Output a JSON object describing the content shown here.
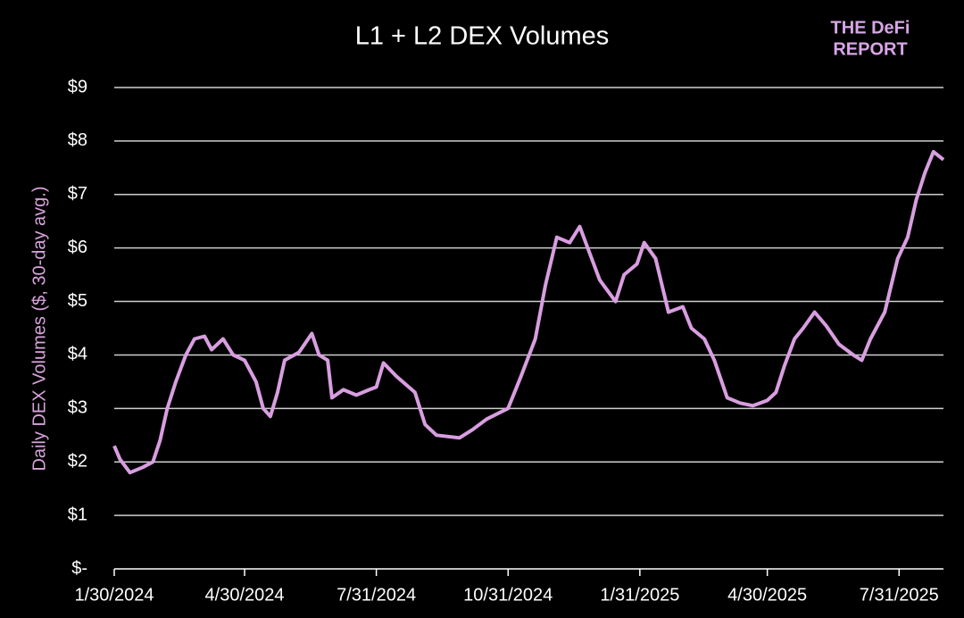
{
  "chart_data": {
    "type": "line",
    "title": "L1 + L2 DEX Volumes",
    "brand": [
      "THE DeFi",
      "REPORT"
    ],
    "y_label": "Daily DEX Volumes ($, 30-day avg.)",
    "x": [
      "1/30/2024",
      "2/3/2024",
      "2/10/2024",
      "2/19/2024",
      "2/26/2024",
      "3/2/2024",
      "3/7/2024",
      "3/13/2024",
      "3/20/2024",
      "3/26/2024",
      "4/2/2024",
      "4/7/2024",
      "4/15/2024",
      "4/22/2024",
      "4/30/2024",
      "5/8/2024",
      "5/13/2024",
      "5/18/2024",
      "5/23/2024",
      "5/28/2024",
      "6/7/2024",
      "6/16/2024",
      "6/21/2024",
      "6/27/2024",
      "6/30/2024",
      "7/8/2024",
      "7/17/2024",
      "7/26/2024",
      "7/31/2024",
      "8/5/2024",
      "8/14/2024",
      "8/27/2024",
      "9/3/2024",
      "9/11/2024",
      "9/27/2024",
      "10/6/2024",
      "10/16/2024",
      "10/31/2024",
      "11/9/2024",
      "11/19/2024",
      "11/26/2024",
      "12/4/2024",
      "12/13/2024",
      "12/20/2024",
      "12/27/2024",
      "1/3/2025",
      "1/14/2025",
      "1/20/2025",
      "1/29/2025",
      "2/3/2025",
      "2/11/2025",
      "2/20/2025",
      "3/2/2025",
      "3/8/2025",
      "3/17/2025",
      "3/24/2025",
      "4/2/2025",
      "4/11/2025",
      "4/20/2025",
      "4/30/2025",
      "5/6/2025",
      "5/12/2025",
      "5/19/2025",
      "5/25/2025",
      "6/2/2025",
      "6/10/2025",
      "6/19/2025",
      "6/29/2025",
      "7/5/2025",
      "7/11/2025",
      "7/21/2025",
      "7/30/2025",
      "8/6/2025",
      "8/12/2025",
      "8/18/2025",
      "8/24/2025",
      "8/31/2025"
    ],
    "series": [
      {
        "name": "DEX Volume",
        "color": "#d89ee0",
        "values": [
          2.3,
          2.05,
          1.8,
          1.9,
          2.0,
          2.4,
          3.0,
          3.5,
          4.0,
          4.3,
          4.35,
          4.1,
          4.3,
          4.0,
          3.9,
          3.5,
          3.0,
          2.85,
          3.3,
          3.9,
          4.05,
          4.4,
          4.0,
          3.9,
          3.2,
          3.35,
          3.25,
          3.35,
          3.4,
          3.85,
          3.6,
          3.3,
          2.7,
          2.5,
          2.45,
          2.6,
          2.8,
          3.0,
          3.6,
          4.3,
          5.3,
          6.2,
          6.1,
          6.4,
          5.9,
          5.4,
          5.0,
          5.5,
          5.7,
          6.1,
          5.8,
          4.8,
          4.9,
          4.5,
          4.3,
          3.9,
          3.2,
          3.1,
          3.05,
          3.15,
          3.3,
          3.8,
          4.3,
          4.5,
          4.8,
          4.55,
          4.2,
          4.0,
          3.9,
          4.3,
          4.8,
          5.8,
          6.2,
          6.9,
          7.4,
          7.8,
          7.65
        ]
      }
    ],
    "xlim": [
      "1/30/2024",
      "8/31/2025"
    ],
    "xticks": [
      "1/30/2024",
      "4/30/2024",
      "7/31/2024",
      "10/31/2024",
      "1/31/2025",
      "4/30/2025",
      "7/31/2025"
    ],
    "ylim": [
      0,
      9
    ],
    "yticks": [
      {
        "value": 0,
        "label": "$-"
      },
      {
        "value": 1,
        "label": "$1"
      },
      {
        "value": 2,
        "label": "$2"
      },
      {
        "value": 3,
        "label": "$3"
      },
      {
        "value": 4,
        "label": "$4"
      },
      {
        "value": 5,
        "label": "$5"
      },
      {
        "value": 6,
        "label": "$6"
      },
      {
        "value": 7,
        "label": "$7"
      },
      {
        "value": 8,
        "label": "$8"
      },
      {
        "value": 9,
        "label": "$9"
      }
    ],
    "grid": true
  }
}
